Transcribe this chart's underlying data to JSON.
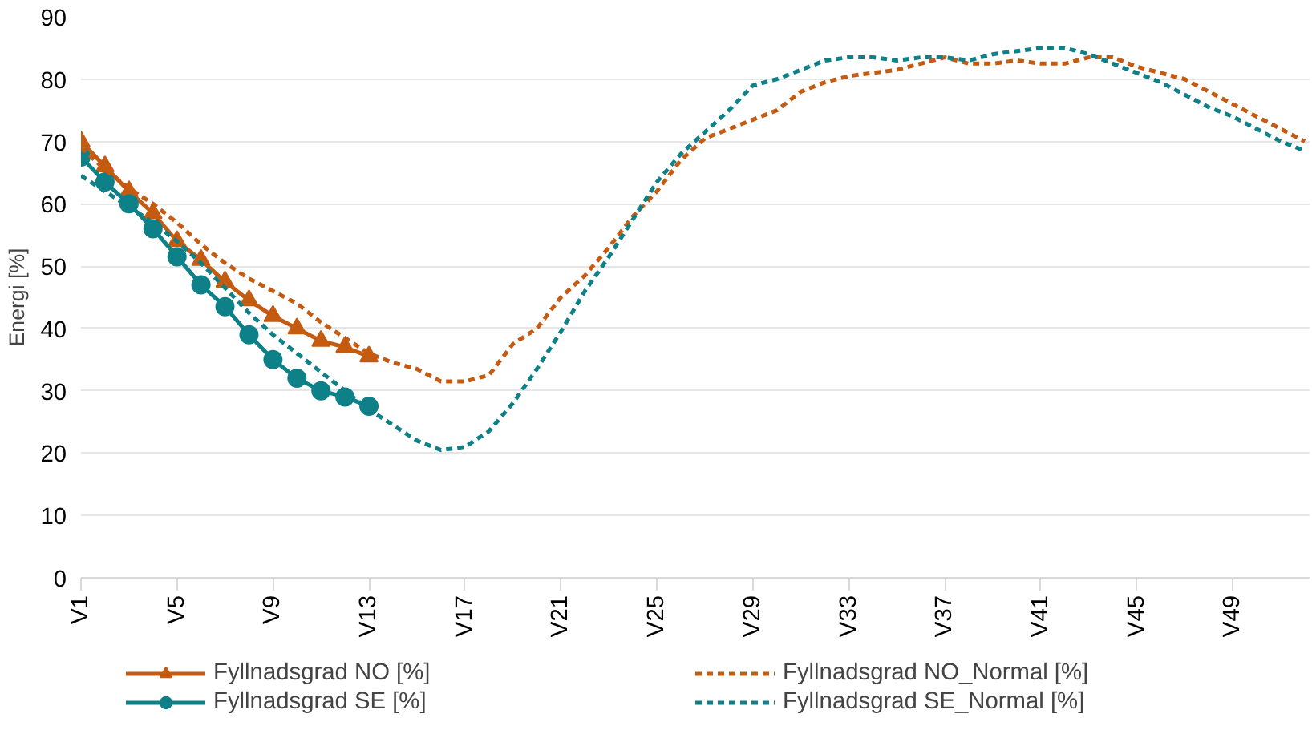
{
  "chart_data": {
    "type": "line",
    "ylabel": "Energi [%]",
    "categories": [
      "V1",
      null,
      null,
      null,
      "V5",
      null,
      null,
      null,
      "V9",
      null,
      null,
      null,
      "V13",
      null,
      null,
      null,
      "V17",
      null,
      null,
      null,
      "V21",
      null,
      null,
      null,
      "V25",
      null,
      null,
      null,
      "V29",
      null,
      null,
      null,
      "V33",
      null,
      null,
      null,
      "V37",
      null,
      null,
      null,
      "V41",
      null,
      null,
      null,
      "V45",
      null,
      null,
      null,
      "V49",
      null,
      null,
      null
    ],
    "series": [
      {
        "name": "Fyllnadsgrad NO [%]",
        "color": "#c55a11",
        "marker": "triangle",
        "line_style": "solid",
        "values": [
          70,
          66,
          62,
          58.5,
          54,
          51,
          47.5,
          44.5,
          42,
          40,
          38,
          37,
          35.5,
          null,
          null,
          null,
          null,
          null,
          null,
          null,
          null,
          null,
          null,
          null,
          null,
          null,
          null,
          null,
          null,
          null,
          null,
          null,
          null,
          null,
          null,
          null,
          null,
          null,
          null,
          null,
          null,
          null,
          null,
          null,
          null,
          null,
          null,
          null,
          null,
          null,
          null,
          null
        ]
      },
      {
        "name": "Fyllnadsgrad SE [%]",
        "color": "#0e8088",
        "marker": "circle",
        "line_style": "solid",
        "values": [
          67.5,
          63.5,
          60,
          56,
          51.5,
          47,
          43.5,
          39,
          35,
          32,
          30,
          29,
          27.5,
          null,
          null,
          null,
          null,
          null,
          null,
          null,
          null,
          null,
          null,
          null,
          null,
          null,
          null,
          null,
          null,
          null,
          null,
          null,
          null,
          null,
          null,
          null,
          null,
          null,
          null,
          null,
          null,
          null,
          null,
          null,
          null,
          null,
          null,
          null,
          null,
          null,
          null,
          null
        ]
      },
      {
        "name": "Fyllnadsgrad NO_Normal [%]",
        "color": "#c55a11",
        "marker": "none",
        "line_style": "dashed",
        "values": [
          69,
          65.5,
          62.5,
          60,
          57,
          53.5,
          50.5,
          48,
          46,
          44,
          41,
          38.5,
          36,
          34.5,
          33.5,
          31.5,
          31.5,
          32.5,
          37.5,
          40,
          45,
          48.5,
          53,
          58,
          62,
          67,
          70.5,
          72,
          73.5,
          75,
          78,
          79.5,
          80.5,
          81,
          81.5,
          82.5,
          83.5,
          82.5,
          82.5,
          83,
          82.5,
          82.5,
          83.5,
          83.5,
          82,
          81,
          80,
          78,
          76,
          74,
          72,
          70
        ]
      },
      {
        "name": "Fyllnadsgrad SE_Normal [%]",
        "color": "#0e8088",
        "marker": "none",
        "line_style": "dashed",
        "values": [
          64.5,
          62,
          59.5,
          57,
          54,
          50.5,
          46.5,
          42.5,
          39,
          36,
          33,
          30,
          27,
          24.5,
          22,
          20.5,
          21,
          23.5,
          28,
          33.5,
          39.5,
          46,
          51.5,
          57.5,
          63.5,
          68,
          71.5,
          75,
          79,
          80,
          81.5,
          83,
          83.5,
          83.5,
          83,
          83.5,
          83.5,
          83,
          84,
          84.5,
          85,
          85,
          84,
          82.5,
          81,
          79.5,
          77.5,
          75.5,
          74,
          72,
          70,
          68.5
        ]
      }
    ],
    "ylim": [
      0,
      90
    ],
    "yticks": [
      0,
      10,
      20,
      30,
      40,
      50,
      60,
      70,
      80,
      90
    ],
    "grid": "y",
    "legend": "bottom"
  }
}
